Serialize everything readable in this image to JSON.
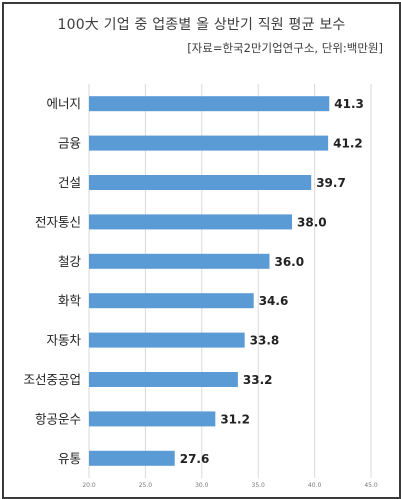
{
  "chart_data": {
    "type": "bar",
    "orientation": "horizontal",
    "title": "100大 기업 중 업종별 올 상반기 직원 평균 보수",
    "subtitle": "[자료=한국2만기업연구소, 단위:백만원]",
    "categories": [
      "에너지",
      "금융",
      "건설",
      "전자통신",
      "철강",
      "화학",
      "자동차",
      "조선중공업",
      "항공운수",
      "유통"
    ],
    "values": [
      41.3,
      41.2,
      39.7,
      38.0,
      36.0,
      34.6,
      33.8,
      33.2,
      31.2,
      27.6
    ],
    "value_labels": [
      "41.3",
      "41.2",
      "39.7",
      "38.0",
      "36.0",
      "34.6",
      "33.8",
      "33.2",
      "31.2",
      "27.6"
    ],
    "xlim": [
      20.0,
      45.0
    ],
    "xticks": [
      20.0,
      25.0,
      30.0,
      35.0,
      40.0,
      45.0
    ],
    "xtick_labels": [
      "20.0",
      "25.0",
      "30.0",
      "35.0",
      "40.0",
      "45.0"
    ],
    "grid": true,
    "bar_color": "#5b9bd5",
    "grid_color": "#d9d9d9"
  }
}
